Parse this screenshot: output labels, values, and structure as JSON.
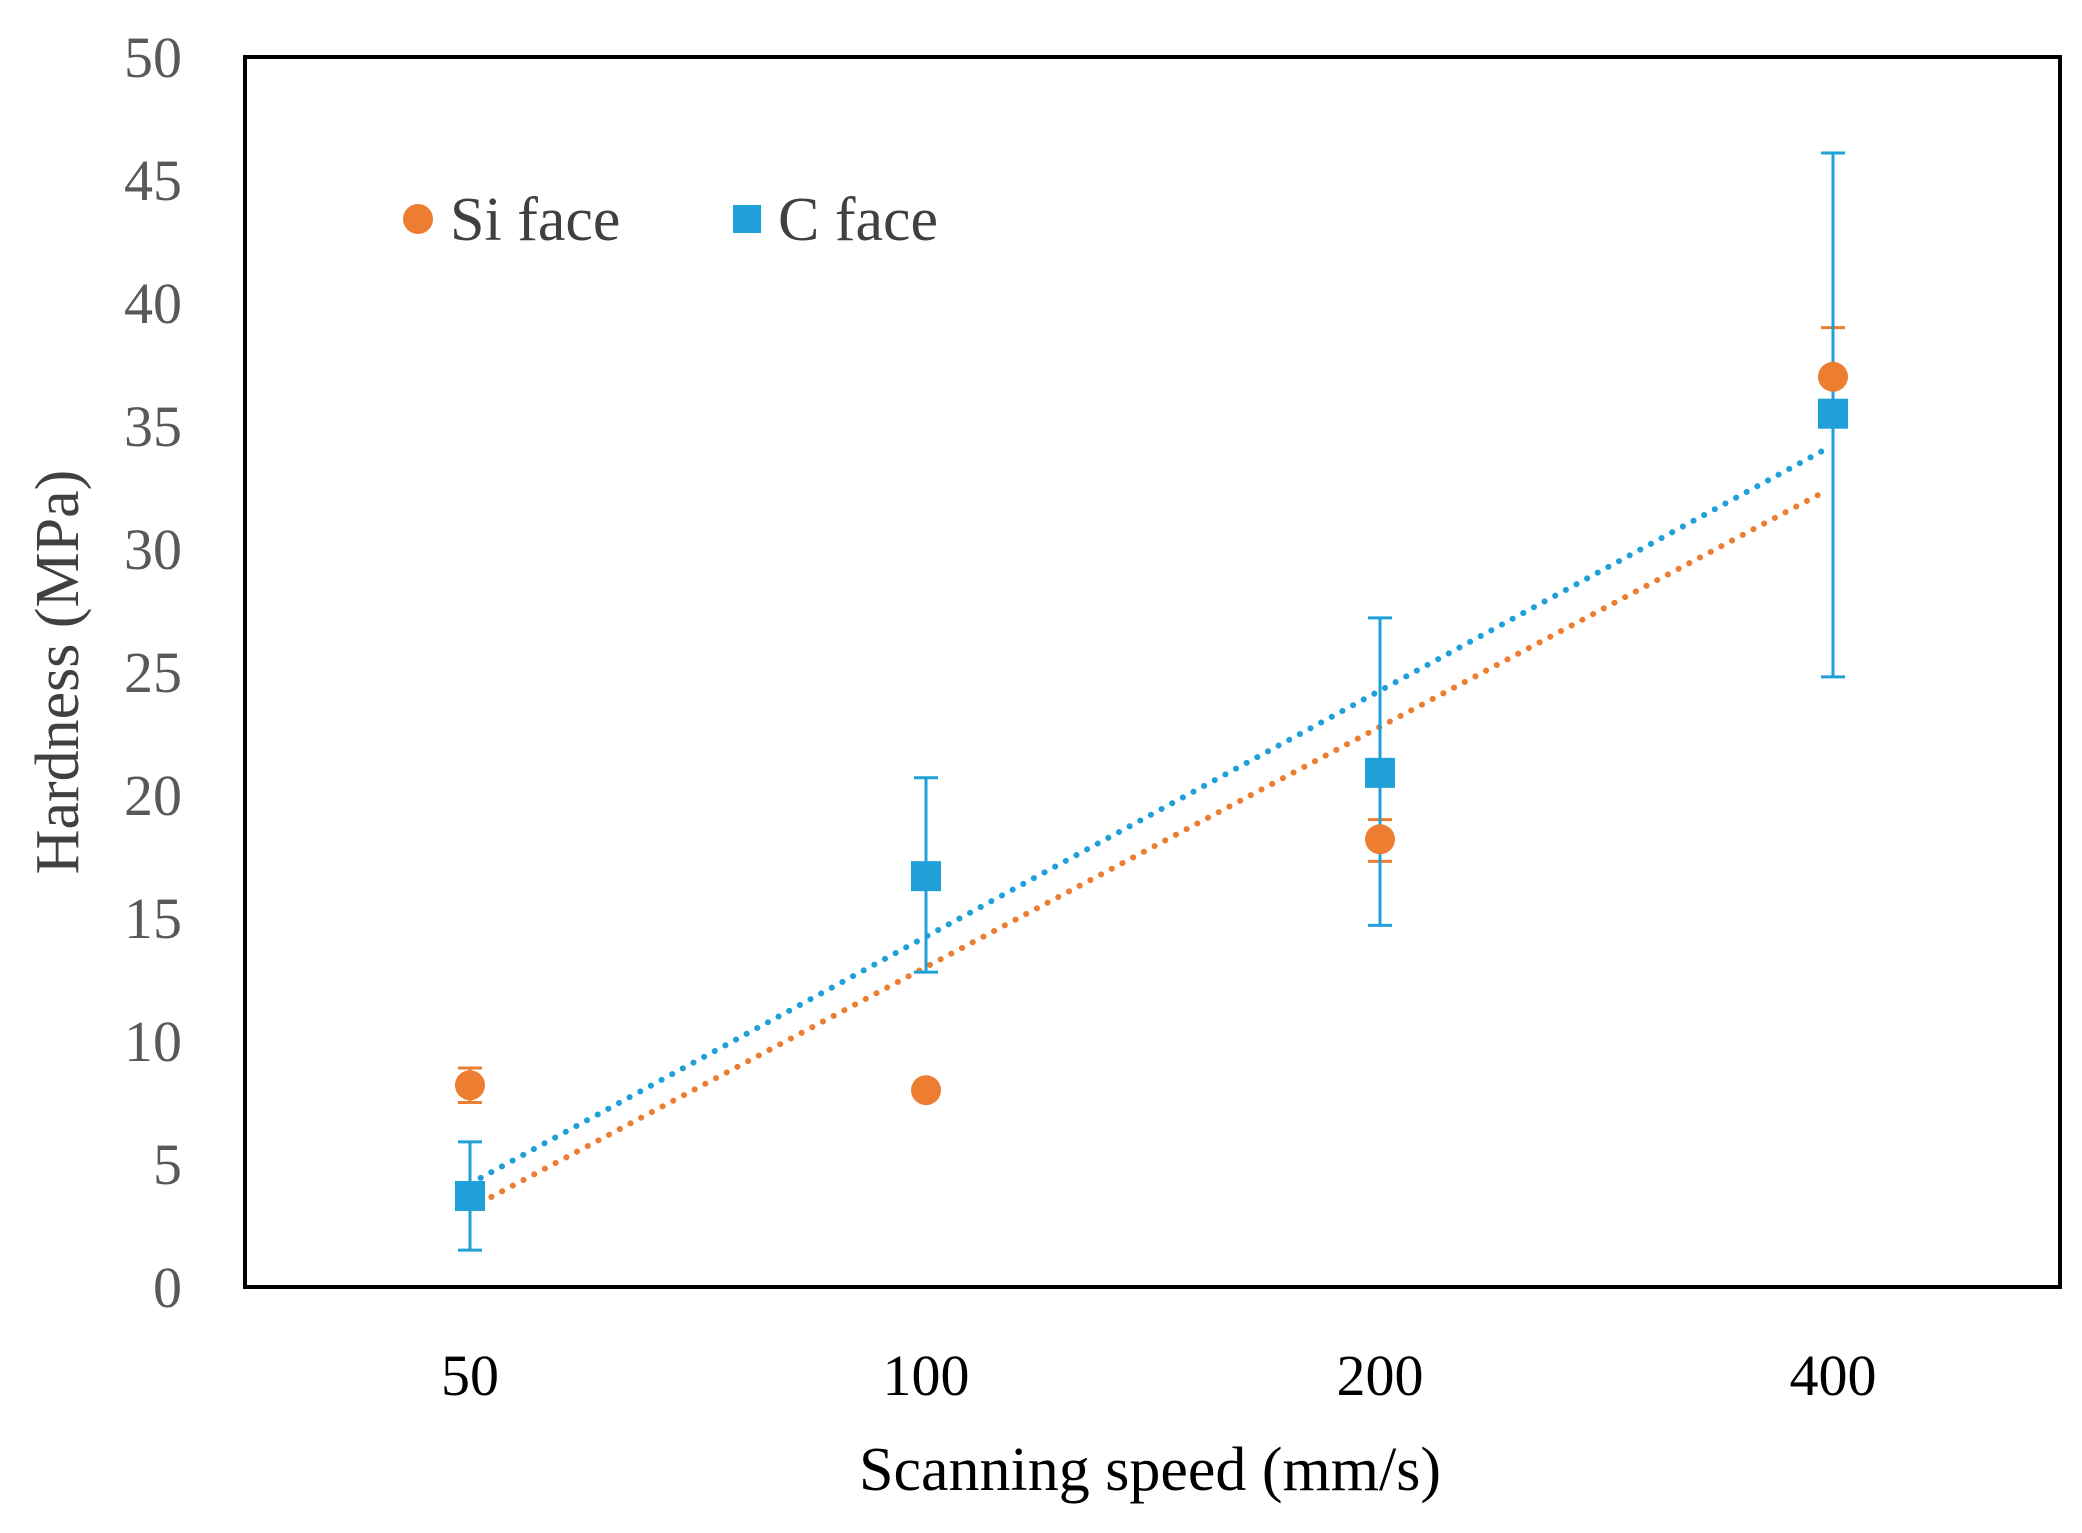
{
  "chart_data": {
    "type": "scatter",
    "title": "",
    "xlabel": "Scanning speed (mm/s)",
    "ylabel": "Hardness (MPa)",
    "categories": [
      "50",
      "100",
      "200",
      "400"
    ],
    "ylim": [
      0,
      50
    ],
    "yticks": [
      "0",
      "5",
      "10",
      "15",
      "20",
      "25",
      "30",
      "35",
      "40",
      "45",
      "50"
    ],
    "grid": false,
    "legend_position": "top-left",
    "series": [
      {
        "name": "Si face",
        "marker": "circle",
        "color": "#ED7D31",
        "values": [
          8.2,
          8.0,
          18.2,
          37.0
        ],
        "error_low": [
          7.5,
          8.0,
          17.3,
          37.0
        ],
        "error_high": [
          8.9,
          8.0,
          19.0,
          39.0
        ],
        "trendline": {
          "style": "dotted",
          "start": 3.2,
          "end": 32.3
        }
      },
      {
        "name": "C face",
        "marker": "square",
        "color": "#1FA0D8",
        "values": [
          3.7,
          16.7,
          20.9,
          35.5
        ],
        "error_low": [
          1.5,
          12.8,
          14.7,
          24.8
        ],
        "error_high": [
          5.9,
          20.7,
          27.2,
          46.1
        ],
        "trendline": {
          "style": "dotted",
          "start": 4.2,
          "end": 34.0
        }
      }
    ]
  }
}
